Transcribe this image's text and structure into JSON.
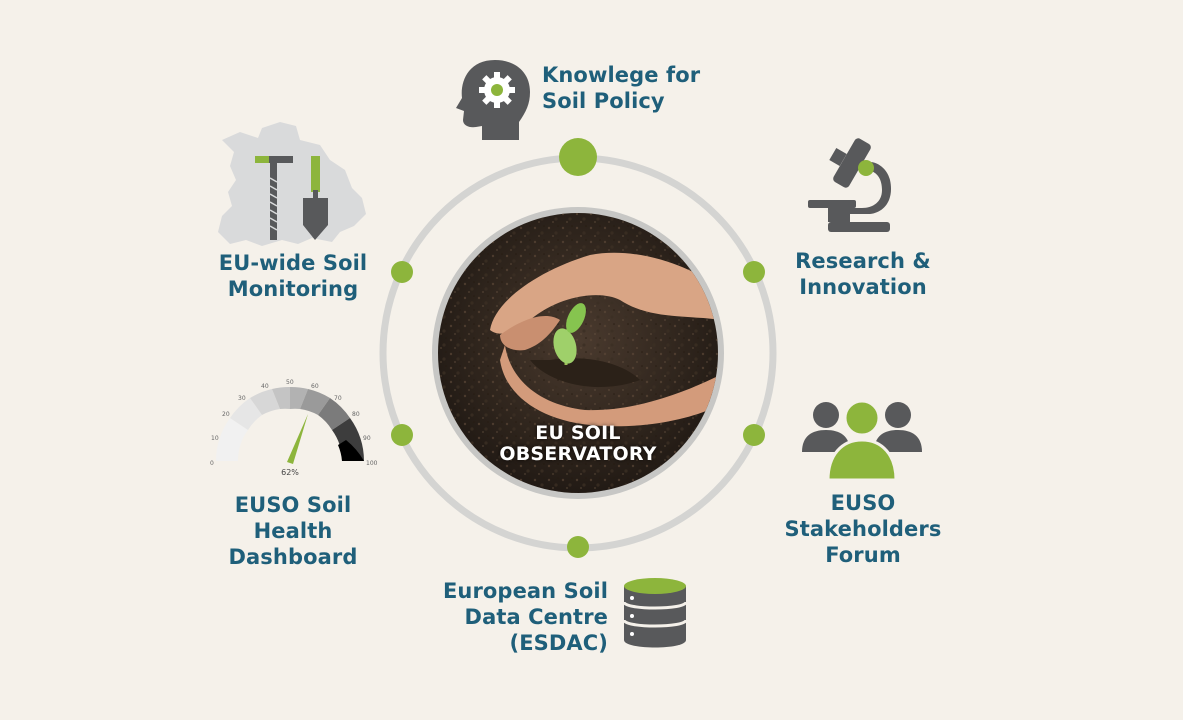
{
  "center": {
    "line1": "EU SOIL",
    "line2": "OBSERVATORY"
  },
  "nodes": {
    "policy": {
      "lines": [
        "Knowlege for",
        "Soil Policy"
      ],
      "icon": "head-gear-icon"
    },
    "research": {
      "lines": [
        "Research &",
        "Innovation"
      ],
      "icon": "microscope-icon"
    },
    "forum": {
      "lines": [
        "EUSO",
        "Stakeholders",
        "Forum"
      ],
      "icon": "people-group-icon"
    },
    "esdac": {
      "lines": [
        "European Soil",
        "Data Centre",
        "(ESDAC)"
      ],
      "icon": "database-icon"
    },
    "dashboard": {
      "lines": [
        "EUSO Soil",
        "Health",
        "Dashboard"
      ],
      "icon": "gauge-icon"
    },
    "monitoring": {
      "lines": [
        "EU-wide Soil",
        "Monitoring"
      ],
      "icon": "europe-map-tools-icon"
    }
  },
  "gauge": {
    "value_label": "62%",
    "value": 62,
    "ticks": [
      "0",
      "10",
      "20",
      "30",
      "40",
      "50",
      "60",
      "70",
      "80",
      "90",
      "100"
    ]
  },
  "colors": {
    "background": "#f5f1ea",
    "accent_green": "#8db53c",
    "label_blue": "#1f5f7a",
    "icon_gray": "#58595b",
    "ring_gray": "#d4d4d2"
  }
}
